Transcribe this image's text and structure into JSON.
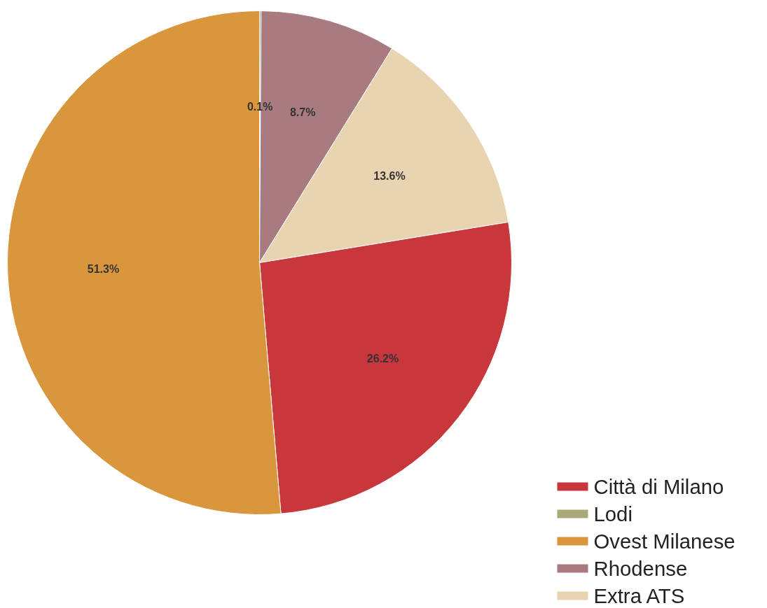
{
  "chart_data": {
    "type": "pie",
    "categories": [
      "Lodi",
      "Rhodense",
      "Extra ATS",
      "Città di Milano",
      "Ovest Milanese"
    ],
    "values": [
      0.1,
      8.7,
      13.6,
      26.2,
      51.3
    ],
    "colors": [
      "#a9a878",
      "#a87b80",
      "#e8d4b0",
      "#c8373b",
      "#d9963c"
    ],
    "value_labels": [
      "0.1%",
      "8.7%",
      "13.6%",
      "26.2%",
      "51.3%"
    ],
    "legend": "bottom right"
  }
}
